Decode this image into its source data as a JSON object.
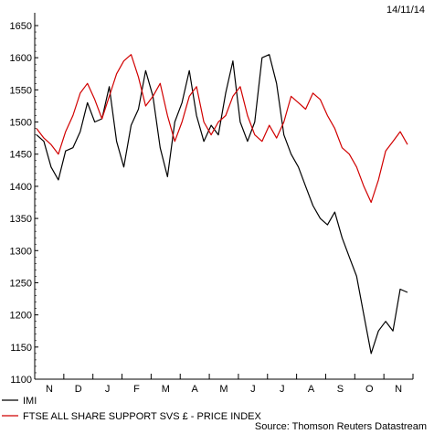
{
  "chart_data": {
    "type": "line",
    "date_stamp": "14/11/14",
    "source": "Source: Thomson Reuters Datastream",
    "y_ticks": [
      1100,
      1150,
      1200,
      1250,
      1300,
      1350,
      1400,
      1450,
      1500,
      1550,
      1600,
      1650
    ],
    "y_tick_labels": [
      "1100",
      "1150",
      "1200",
      "1250",
      "1300",
      "1350",
      "1400",
      "1450",
      "1500",
      "1550",
      "1600",
      "1650"
    ],
    "ylim": [
      1100,
      1650
    ],
    "months": [
      "N",
      "D",
      "J",
      "F",
      "M",
      "A",
      "M",
      "J",
      "J",
      "A",
      "S",
      "O",
      "N"
    ],
    "legend_position": "bottom-left",
    "series": [
      {
        "name": "IMI",
        "color": "#000000",
        "values": [
          1480,
          1470,
          1430,
          1410,
          1455,
          1460,
          1485,
          1530,
          1500,
          1505,
          1555,
          1470,
          1430,
          1495,
          1520,
          1580,
          1540,
          1460,
          1415,
          1500,
          1530,
          1580,
          1510,
          1470,
          1495,
          1480,
          1545,
          1595,
          1500,
          1470,
          1500,
          1600,
          1605,
          1560,
          1480,
          1450,
          1430,
          1400,
          1370,
          1350,
          1340,
          1360,
          1320,
          1290,
          1260,
          1200,
          1140,
          1175,
          1190,
          1175,
          1240,
          1235
        ]
      },
      {
        "name": "FTSE ALL SHARE SUPPORT SVS £ - PRICE INDEX",
        "color": "#d10000",
        "values": [
          1490,
          1475,
          1465,
          1450,
          1485,
          1510,
          1545,
          1560,
          1535,
          1505,
          1540,
          1575,
          1595,
          1605,
          1570,
          1525,
          1540,
          1560,
          1510,
          1470,
          1500,
          1540,
          1555,
          1500,
          1480,
          1500,
          1510,
          1540,
          1555,
          1510,
          1480,
          1470,
          1495,
          1475,
          1500,
          1540,
          1530,
          1520,
          1545,
          1535,
          1510,
          1490,
          1460,
          1450,
          1430,
          1400,
          1375,
          1410,
          1455,
          1470,
          1485,
          1465
        ]
      }
    ]
  }
}
